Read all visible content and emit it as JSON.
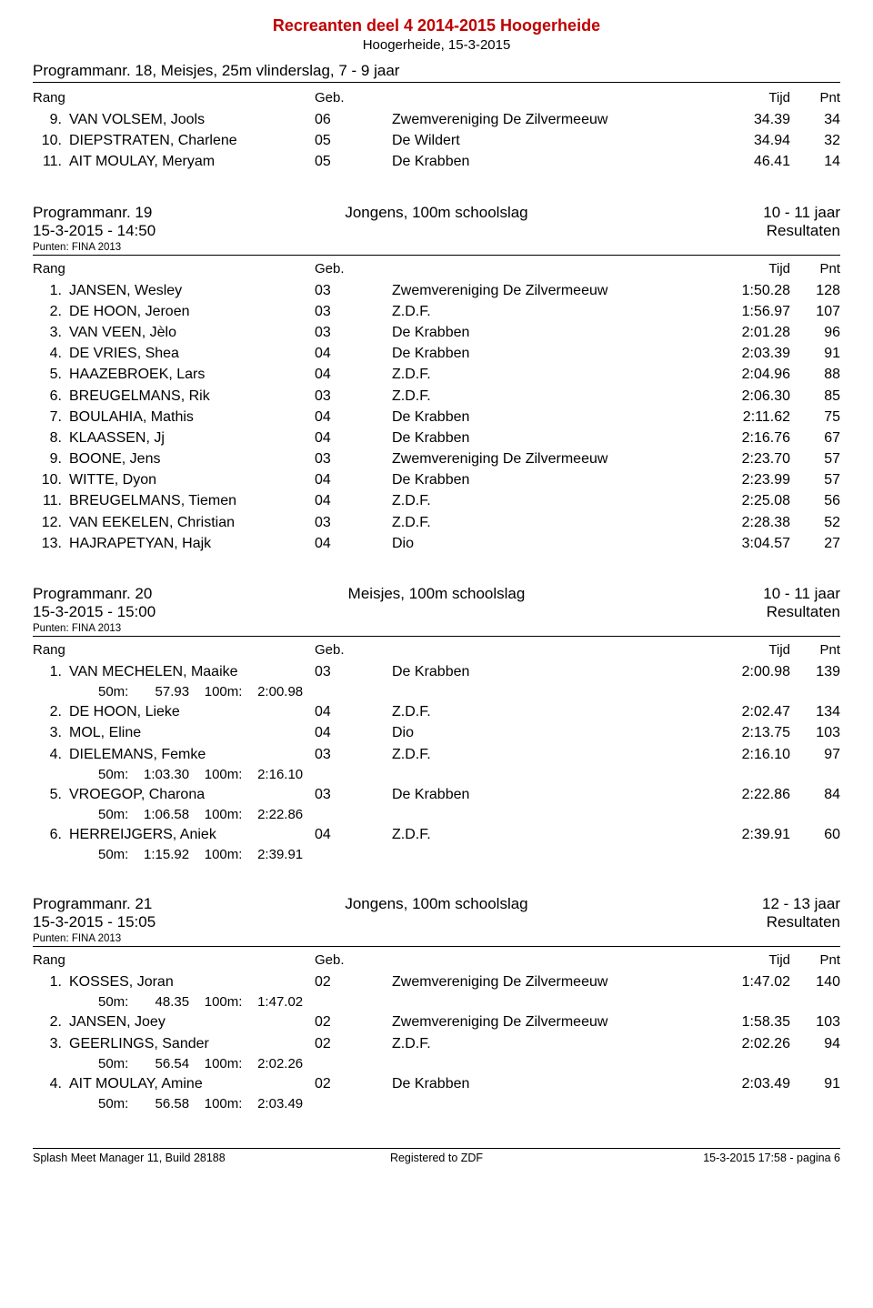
{
  "doc": {
    "title": "Recreanten deel 4  2014-2015 Hoogerheide",
    "subtitle": "Hoogerheide, 15-3-2015"
  },
  "continued": {
    "line": "Programmanr. 18, Meisjes, 25m vlinderslag, 7 - 9 jaar",
    "headers": {
      "rang": "Rang",
      "geb": "Geb.",
      "tijd": "Tijd",
      "pnt": "Pnt"
    },
    "rows": [
      {
        "rank": "9.",
        "name": "VAN VOLSEM, Jools",
        "geb": "06",
        "club": "Zwemvereniging De Zilvermeeuw",
        "tijd": "34.39",
        "pnt": "34"
      },
      {
        "rank": "10.",
        "name": "DIEPSTRATEN, Charlene",
        "geb": "05",
        "club": "De Wildert",
        "tijd": "34.94",
        "pnt": "32"
      },
      {
        "rank": "11.",
        "name": "AIT MOULAY, Meryam",
        "geb": "05",
        "club": "De Krabben",
        "tijd": "46.41",
        "pnt": "14"
      }
    ]
  },
  "prog19": {
    "left": "Programmanr. 19",
    "center": "Jongens, 100m schoolslag",
    "right": "10 - 11 jaar",
    "datetime": "15-3-2015 - 14:50",
    "resultaten": "Resultaten",
    "punten": "Punten: FINA 2013",
    "headers": {
      "rang": "Rang",
      "geb": "Geb.",
      "tijd": "Tijd",
      "pnt": "Pnt"
    },
    "rows": [
      {
        "rank": "1.",
        "name": "JANSEN, Wesley",
        "geb": "03",
        "club": "Zwemvereniging De Zilvermeeuw",
        "tijd": "1:50.28",
        "pnt": "128"
      },
      {
        "rank": "2.",
        "name": "DE HOON, Jeroen",
        "geb": "03",
        "club": "Z.D.F.",
        "tijd": "1:56.97",
        "pnt": "107"
      },
      {
        "rank": "3.",
        "name": "VAN VEEN, Jèlo",
        "geb": "03",
        "club": "De Krabben",
        "tijd": "2:01.28",
        "pnt": "96"
      },
      {
        "rank": "4.",
        "name": "DE VRIES, Shea",
        "geb": "04",
        "club": "De Krabben",
        "tijd": "2:03.39",
        "pnt": "91"
      },
      {
        "rank": "5.",
        "name": "HAAZEBROEK, Lars",
        "geb": "04",
        "club": "Z.D.F.",
        "tijd": "2:04.96",
        "pnt": "88"
      },
      {
        "rank": "6.",
        "name": "BREUGELMANS, Rik",
        "geb": "03",
        "club": "Z.D.F.",
        "tijd": "2:06.30",
        "pnt": "85"
      },
      {
        "rank": "7.",
        "name": "BOULAHIA, Mathis",
        "geb": "04",
        "club": "De Krabben",
        "tijd": "2:11.62",
        "pnt": "75"
      },
      {
        "rank": "8.",
        "name": "KLAASSEN, Jj",
        "geb": "04",
        "club": "De Krabben",
        "tijd": "2:16.76",
        "pnt": "67"
      },
      {
        "rank": "9.",
        "name": "BOONE, Jens",
        "geb": "03",
        "club": "Zwemvereniging De Zilvermeeuw",
        "tijd": "2:23.70",
        "pnt": "57"
      },
      {
        "rank": "10.",
        "name": "WITTE, Dyon",
        "geb": "04",
        "club": "De Krabben",
        "tijd": "2:23.99",
        "pnt": "57"
      },
      {
        "rank": "11.",
        "name": "BREUGELMANS, Tiemen",
        "geb": "04",
        "club": "Z.D.F.",
        "tijd": "2:25.08",
        "pnt": "56"
      },
      {
        "rank": "12.",
        "name": "VAN EEKELEN, Christian",
        "geb": "03",
        "club": "Z.D.F.",
        "tijd": "2:28.38",
        "pnt": "52"
      },
      {
        "rank": "13.",
        "name": "HAJRAPETYAN, Hajk",
        "geb": "04",
        "club": "Dio",
        "tijd": "3:04.57",
        "pnt": "27"
      }
    ]
  },
  "prog20": {
    "left": "Programmanr. 20",
    "center": "Meisjes, 100m schoolslag",
    "right": "10 - 11 jaar",
    "datetime": "15-3-2015 - 15:00",
    "resultaten": "Resultaten",
    "punten": "Punten: FINA 2013",
    "headers": {
      "rang": "Rang",
      "geb": "Geb.",
      "tijd": "Tijd",
      "pnt": "Pnt"
    },
    "rows": [
      {
        "rank": "1.",
        "name": "VAN MECHELEN, Maaike",
        "geb": "03",
        "club": "De Krabben",
        "tijd": "2:00.98",
        "pnt": "139",
        "split": "50m:       57.93    100m:    2:00.98"
      },
      {
        "rank": "2.",
        "name": "DE HOON, Lieke",
        "geb": "04",
        "club": "Z.D.F.",
        "tijd": "2:02.47",
        "pnt": "134"
      },
      {
        "rank": "3.",
        "name": "MOL, Eline",
        "geb": "04",
        "club": "Dio",
        "tijd": "2:13.75",
        "pnt": "103"
      },
      {
        "rank": "4.",
        "name": "DIELEMANS, Femke",
        "geb": "03",
        "club": "Z.D.F.",
        "tijd": "2:16.10",
        "pnt": "97",
        "split": "50m:    1:03.30    100m:    2:16.10"
      },
      {
        "rank": "5.",
        "name": "VROEGOP, Charona",
        "geb": "03",
        "club": "De Krabben",
        "tijd": "2:22.86",
        "pnt": "84",
        "split": "50m:    1:06.58    100m:    2:22.86"
      },
      {
        "rank": "6.",
        "name": "HERREIJGERS, Aniek",
        "geb": "04",
        "club": "Z.D.F.",
        "tijd": "2:39.91",
        "pnt": "60",
        "split": "50m:    1:15.92    100m:    2:39.91"
      }
    ]
  },
  "prog21": {
    "left": "Programmanr. 21",
    "center": "Jongens, 100m schoolslag",
    "right": "12 - 13 jaar",
    "datetime": "15-3-2015 - 15:05",
    "resultaten": "Resultaten",
    "punten": "Punten: FINA 2013",
    "headers": {
      "rang": "Rang",
      "geb": "Geb.",
      "tijd": "Tijd",
      "pnt": "Pnt"
    },
    "rows": [
      {
        "rank": "1.",
        "name": "KOSSES, Joran",
        "geb": "02",
        "club": "Zwemvereniging De Zilvermeeuw",
        "tijd": "1:47.02",
        "pnt": "140",
        "split": "50m:       48.35    100m:    1:47.02"
      },
      {
        "rank": "2.",
        "name": "JANSEN, Joey",
        "geb": "02",
        "club": "Zwemvereniging De Zilvermeeuw",
        "tijd": "1:58.35",
        "pnt": "103"
      },
      {
        "rank": "3.",
        "name": "GEERLINGS, Sander",
        "geb": "02",
        "club": "Z.D.F.",
        "tijd": "2:02.26",
        "pnt": "94",
        "split": "50m:       56.54    100m:    2:02.26"
      },
      {
        "rank": "4.",
        "name": "AIT MOULAY, Amine",
        "geb": "02",
        "club": "De Krabben",
        "tijd": "2:03.49",
        "pnt": "91",
        "split": "50m:       56.58    100m:    2:03.49"
      }
    ]
  },
  "footer": {
    "left": "Splash Meet Manager 11, Build 28188",
    "center": "Registered to ZDF",
    "right": "15-3-2015 17:58 - pagina 6"
  }
}
